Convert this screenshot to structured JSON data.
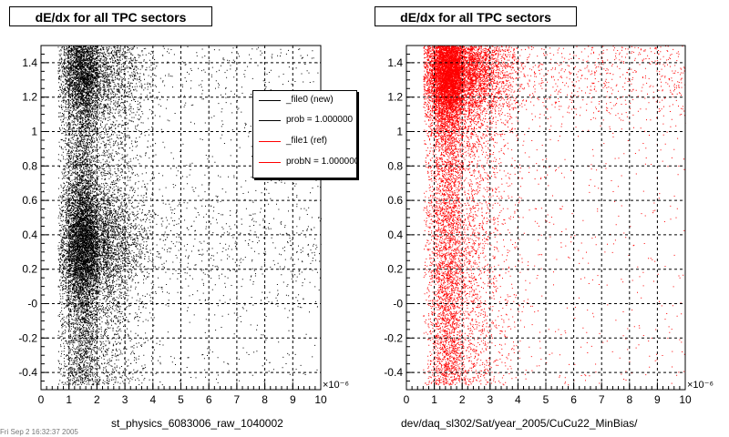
{
  "panels": [
    {
      "title": "dE/dx for all TPC sectors",
      "xlabel": "st_physics_6083006_raw_1040002",
      "color": "#000000"
    },
    {
      "title": "dE/dx for all TPC sectors",
      "xlabel": "dev/daq_sl302/Sat/year_2005/CuCu22_MinBias/",
      "color": "#ff0000"
    }
  ],
  "legend": {
    "items": [
      {
        "label": "_file0 (new)",
        "color": "#000000"
      },
      {
        "label": "prob = 1.000000",
        "color": "#000000"
      },
      {
        "label": "_file1 (ref)",
        "color": "#ff0000"
      },
      {
        "label": "probN = 1.000000",
        "color": "#ff0000"
      }
    ]
  },
  "footer": "Fri Sep 2 16:32:37 2005",
  "chart_data": [
    {
      "type": "scatter",
      "title": "dE/dx for all TPC sectors",
      "xlabel": "st_physics_6083006_raw_1040002",
      "ylabel": "",
      "x_exponent_label": "×10⁻⁶",
      "xlim": [
        0,
        10
      ],
      "ylim": [
        -0.5,
        1.5
      ],
      "xticks": [
        "0",
        "1",
        "2",
        "3",
        "4",
        "5",
        "6",
        "7",
        "8",
        "9",
        "10"
      ],
      "yticks": [
        "-0.4",
        "-0.2",
        "-0",
        "0.2",
        "0.4",
        "0.6",
        "0.8",
        "1",
        "1.2",
        "1.4"
      ],
      "grid": true,
      "series": [
        {
          "color": "#000000",
          "density_profile": {
            "x_range_dense": [
              0.7,
              2.3
            ],
            "x_peak": 1.5,
            "tail_to": 10
          }
        }
      ]
    },
    {
      "type": "scatter",
      "title": "dE/dx for all TPC sectors",
      "xlabel": "dev/daq_sl302/Sat/year_2005/CuCu22_MinBias/",
      "ylabel": "",
      "x_exponent_label": "×10⁻⁶",
      "xlim": [
        0,
        10
      ],
      "ylim": [
        -0.5,
        1.5
      ],
      "xticks": [
        "0",
        "1",
        "2",
        "3",
        "4",
        "5",
        "6",
        "7",
        "8",
        "9",
        "10"
      ],
      "yticks": [
        "-0.4",
        "-0.2",
        "-0",
        "0.2",
        "0.4",
        "0.6",
        "0.8",
        "1",
        "1.2",
        "1.4"
      ],
      "grid": true,
      "series": [
        {
          "color": "#ff0000",
          "density_profile": {
            "x_range_dense": [
              0.7,
              2.3
            ],
            "x_peak": 1.5,
            "tail_to": 10
          }
        }
      ]
    }
  ]
}
